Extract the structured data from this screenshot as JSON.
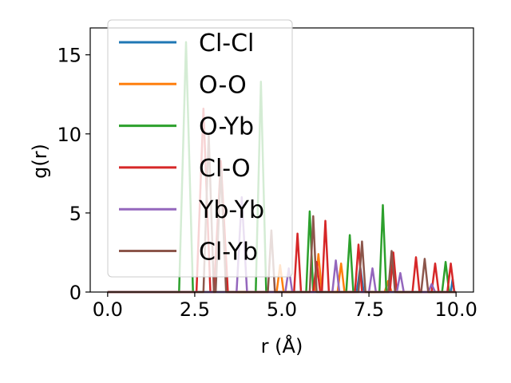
{
  "chart_data": {
    "type": "line",
    "xlabel": "r (Å)",
    "ylabel": "g(r)",
    "xlim": [
      -0.5,
      10.5
    ],
    "ylim": [
      0,
      16.7
    ],
    "xticks": [
      0.0,
      2.5,
      5.0,
      7.5,
      10.0
    ],
    "xtick_labels": [
      "0.0",
      "2.5",
      "5.0",
      "7.5",
      "10.0"
    ],
    "yticks": [
      0,
      5,
      10,
      15
    ],
    "ytick_labels": [
      "0",
      "5",
      "10",
      "15"
    ],
    "grid": false,
    "legend_position": "upper-left",
    "series": [
      {
        "name": "Cl-Cl",
        "color": "#1f77b4",
        "points": [
          [
            0,
            0
          ],
          [
            7.15,
            0
          ],
          [
            7.25,
            1.6
          ],
          [
            7.35,
            0
          ],
          [
            9.85,
            0
          ],
          [
            9.9,
            0.8
          ],
          [
            9.95,
            0
          ],
          [
            10,
            0
          ]
        ]
      },
      {
        "name": "O-O",
        "color": "#ff7f0e",
        "points": [
          [
            0,
            0
          ],
          [
            4.85,
            0
          ],
          [
            4.95,
            1.7
          ],
          [
            5.05,
            0
          ],
          [
            5.95,
            0
          ],
          [
            6.05,
            2.4
          ],
          [
            6.15,
            0
          ],
          [
            6.6,
            0
          ],
          [
            6.7,
            1.8
          ],
          [
            6.8,
            0
          ],
          [
            7.95,
            0
          ],
          [
            8.05,
            0.7
          ],
          [
            8.15,
            0
          ],
          [
            10,
            0
          ]
        ]
      },
      {
        "name": "O-Yb",
        "color": "#2ca02c",
        "points": [
          [
            0,
            0
          ],
          [
            2.05,
            0
          ],
          [
            2.25,
            15.8
          ],
          [
            2.45,
            0
          ],
          [
            4.25,
            0
          ],
          [
            4.4,
            13.3
          ],
          [
            4.55,
            0
          ],
          [
            5.7,
            0
          ],
          [
            5.8,
            5.1
          ],
          [
            5.9,
            0
          ],
          [
            6.85,
            0
          ],
          [
            6.95,
            3.6
          ],
          [
            7.05,
            0
          ],
          [
            7.8,
            0
          ],
          [
            7.9,
            5.5
          ],
          [
            8.0,
            0
          ],
          [
            9.6,
            0
          ],
          [
            9.7,
            1.9
          ],
          [
            9.8,
            0
          ],
          [
            10,
            0
          ]
        ]
      },
      {
        "name": "Cl-O",
        "color": "#d62728",
        "points": [
          [
            0,
            0
          ],
          [
            2.55,
            0
          ],
          [
            2.75,
            11.6
          ],
          [
            2.95,
            0
          ],
          [
            3.05,
            0
          ],
          [
            3.25,
            8.3
          ],
          [
            3.45,
            0
          ],
          [
            5.35,
            0
          ],
          [
            5.45,
            3.7
          ],
          [
            5.55,
            0
          ],
          [
            5.9,
            0
          ],
          [
            6.0,
            1.9
          ],
          [
            6.1,
            0
          ],
          [
            6.15,
            0
          ],
          [
            6.25,
            4.5
          ],
          [
            6.35,
            0
          ],
          [
            7.1,
            0
          ],
          [
            7.2,
            3.0
          ],
          [
            7.3,
            0
          ],
          [
            8.1,
            0
          ],
          [
            8.2,
            2.5
          ],
          [
            8.3,
            0
          ],
          [
            8.75,
            0
          ],
          [
            8.85,
            2.2
          ],
          [
            8.95,
            0
          ],
          [
            9.3,
            0
          ],
          [
            9.4,
            1.8
          ],
          [
            9.5,
            0
          ],
          [
            9.75,
            0
          ],
          [
            9.85,
            1.8
          ],
          [
            9.95,
            0
          ],
          [
            10,
            0
          ]
        ]
      },
      {
        "name": "Yb-Yb",
        "color": "#9467bd",
        "points": [
          [
            0,
            0
          ],
          [
            3.7,
            0
          ],
          [
            3.85,
            6.0
          ],
          [
            4.0,
            0
          ],
          [
            5.1,
            0
          ],
          [
            5.2,
            1.5
          ],
          [
            5.3,
            0
          ],
          [
            6.45,
            0
          ],
          [
            6.55,
            2.0
          ],
          [
            6.65,
            0
          ],
          [
            7.5,
            0
          ],
          [
            7.6,
            1.5
          ],
          [
            7.7,
            0
          ],
          [
            8.3,
            0
          ],
          [
            8.4,
            1.2
          ],
          [
            8.5,
            0
          ],
          [
            9.2,
            0
          ],
          [
            9.3,
            0.5
          ],
          [
            9.4,
            0
          ],
          [
            10,
            0
          ]
        ]
      },
      {
        "name": "Cl-Yb",
        "color": "#8c564b",
        "points": [
          [
            0,
            0
          ],
          [
            2.75,
            0
          ],
          [
            2.9,
            10.0
          ],
          [
            3.05,
            0
          ],
          [
            3.1,
            0
          ],
          [
            3.25,
            7.8
          ],
          [
            3.4,
            0
          ],
          [
            4.6,
            0
          ],
          [
            4.7,
            3.9
          ],
          [
            4.8,
            0
          ],
          [
            5.8,
            0
          ],
          [
            5.9,
            4.8
          ],
          [
            6.0,
            0
          ],
          [
            7.2,
            0
          ],
          [
            7.3,
            3.2
          ],
          [
            7.4,
            0
          ],
          [
            8.05,
            0
          ],
          [
            8.15,
            2.6
          ],
          [
            8.25,
            0
          ],
          [
            9.0,
            0
          ],
          [
            9.1,
            2.1
          ],
          [
            9.2,
            0
          ],
          [
            10,
            0
          ]
        ]
      }
    ]
  }
}
